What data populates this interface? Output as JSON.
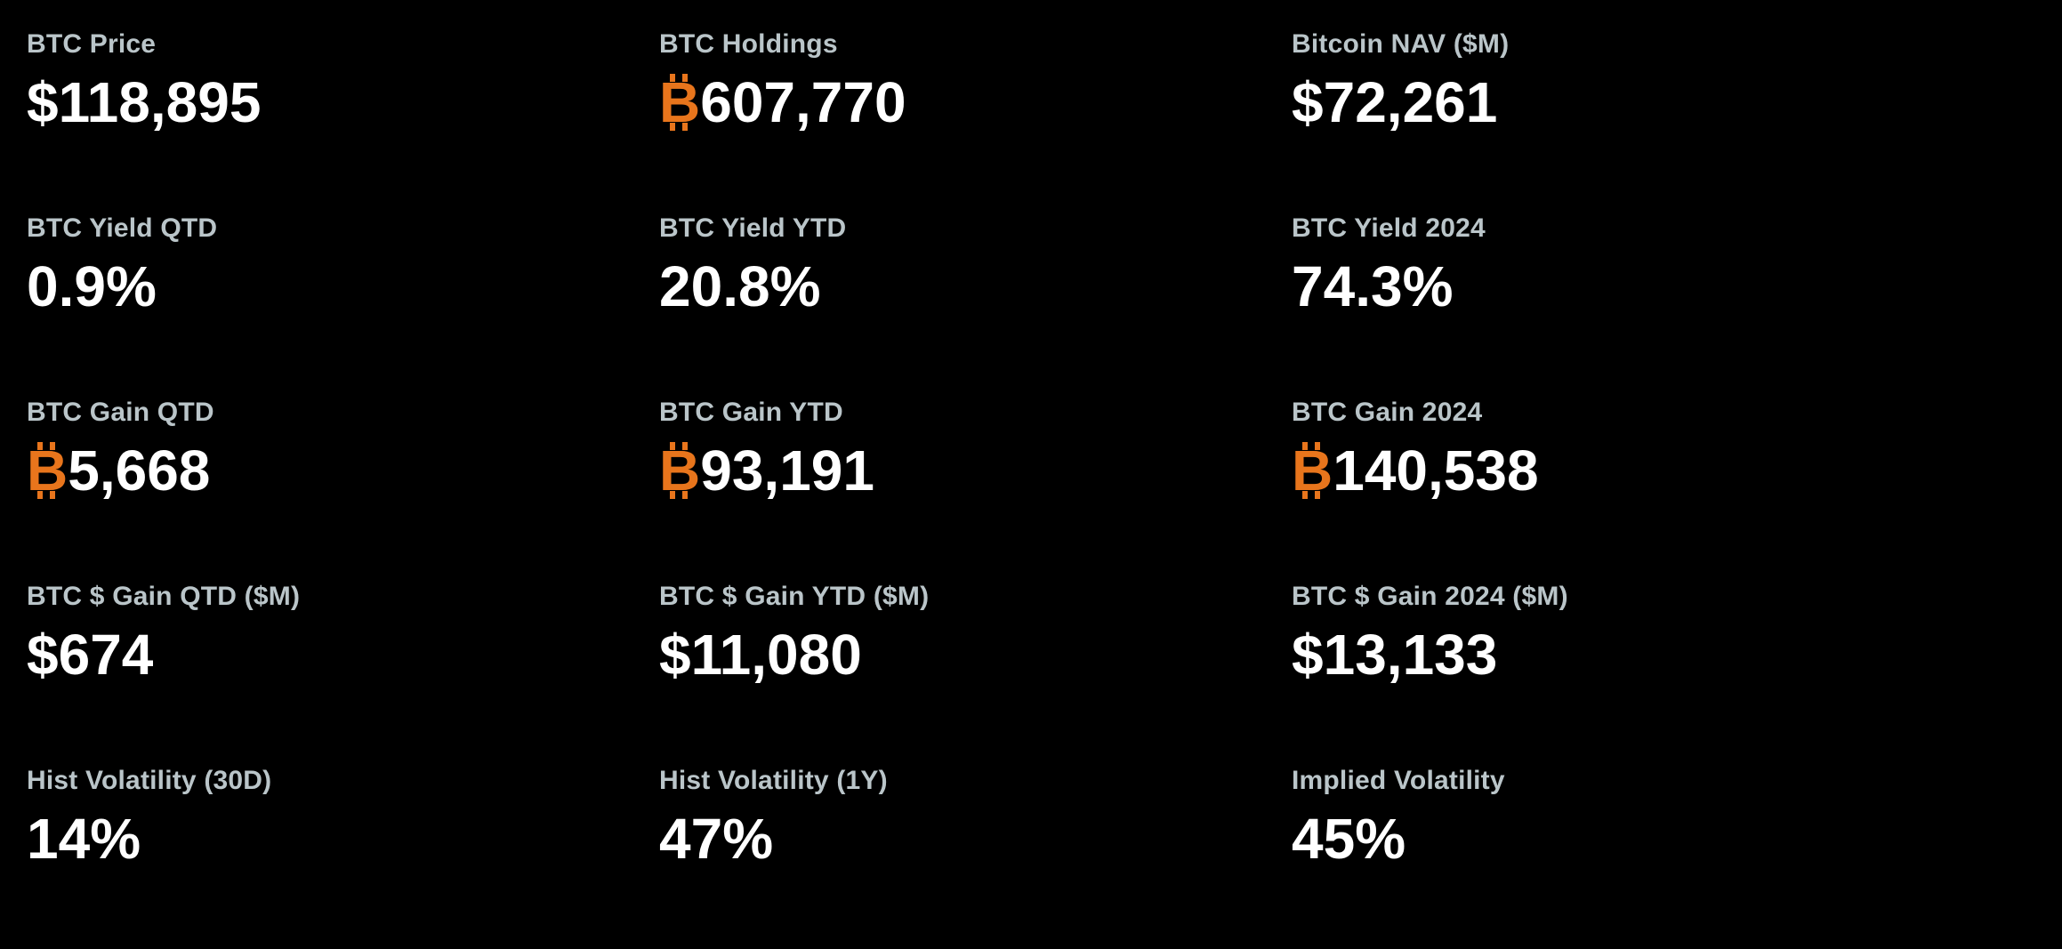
{
  "theme": {
    "background": "#000000",
    "label_color": "#bac5c9",
    "value_color": "#ffffff",
    "bitcoin_orange": "#e8751c"
  },
  "btc_symbol_char": "₿",
  "stats": [
    {
      "label": "BTC Price",
      "symbol": "",
      "value": "$118,895"
    },
    {
      "label": "BTC Holdings",
      "symbol": "₿",
      "value": "607,770"
    },
    {
      "label": "Bitcoin NAV ($M)",
      "symbol": "",
      "value": "$72,261"
    },
    {
      "label": "BTC Yield QTD",
      "symbol": "",
      "value": "0.9%"
    },
    {
      "label": "BTC Yield YTD",
      "symbol": "",
      "value": "20.8%"
    },
    {
      "label": "BTC Yield 2024",
      "symbol": "",
      "value": "74.3%"
    },
    {
      "label": "BTC Gain QTD",
      "symbol": "₿",
      "value": "5,668"
    },
    {
      "label": "BTC Gain YTD",
      "symbol": "₿",
      "value": "93,191"
    },
    {
      "label": "BTC Gain 2024",
      "symbol": "₿",
      "value": "140,538"
    },
    {
      "label": "BTC $ Gain QTD ($M)",
      "symbol": "",
      "value": "$674"
    },
    {
      "label": "BTC $ Gain YTD ($M)",
      "symbol": "",
      "value": "$11,080"
    },
    {
      "label": "BTC $ Gain 2024 ($M)",
      "symbol": "",
      "value": "$13,133"
    },
    {
      "label": "Hist Volatility (30D)",
      "symbol": "",
      "value": "14%"
    },
    {
      "label": "Hist Volatility (1Y)",
      "symbol": "",
      "value": "47%"
    },
    {
      "label": "Implied Volatility",
      "symbol": "",
      "value": "45%"
    }
  ]
}
